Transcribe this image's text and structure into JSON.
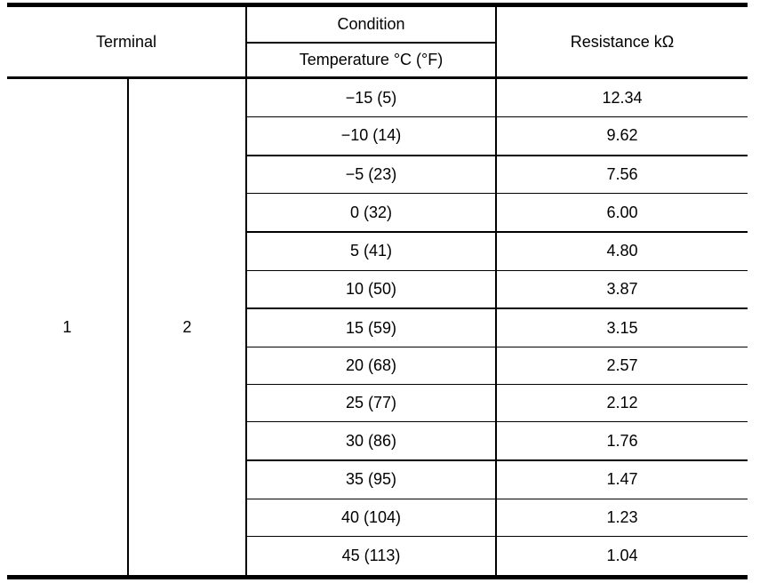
{
  "table": {
    "headers": {
      "terminal": "Terminal",
      "condition": "Condition",
      "temperature": "Temperature °C (°F)",
      "resistance": "Resistance kΩ"
    },
    "terminal_values": [
      "1",
      "2"
    ],
    "rows": [
      {
        "temperature": "−15 (5)",
        "resistance": "12.34",
        "thick_bottom": false
      },
      {
        "temperature": "−10 (14)",
        "resistance": "9.62",
        "thick_bottom": true
      },
      {
        "temperature": "−5 (23)",
        "resistance": "7.56",
        "thick_bottom": false
      },
      {
        "temperature": "0 (32)",
        "resistance": "6.00",
        "thick_bottom": true
      },
      {
        "temperature": "5 (41)",
        "resistance": "4.80",
        "thick_bottom": false
      },
      {
        "temperature": "10 (50)",
        "resistance": "3.87",
        "thick_bottom": true
      },
      {
        "temperature": "15 (59)",
        "resistance": "3.15",
        "thick_bottom": false
      },
      {
        "temperature": "20 (68)",
        "resistance": "2.57",
        "thick_bottom": false
      },
      {
        "temperature": "25 (77)",
        "resistance": "2.12",
        "thick_bottom": false
      },
      {
        "temperature": "30 (86)",
        "resistance": "1.76",
        "thick_bottom": true
      },
      {
        "temperature": "35 (95)",
        "resistance": "1.47",
        "thick_bottom": false
      },
      {
        "temperature": "40 (104)",
        "resistance": "1.23",
        "thick_bottom": false
      },
      {
        "temperature": "45 (113)",
        "resistance": "1.04",
        "thick_bottom": false
      }
    ]
  },
  "colors": {
    "border": "#000000",
    "background": "#ffffff",
    "text": "#000000"
  }
}
